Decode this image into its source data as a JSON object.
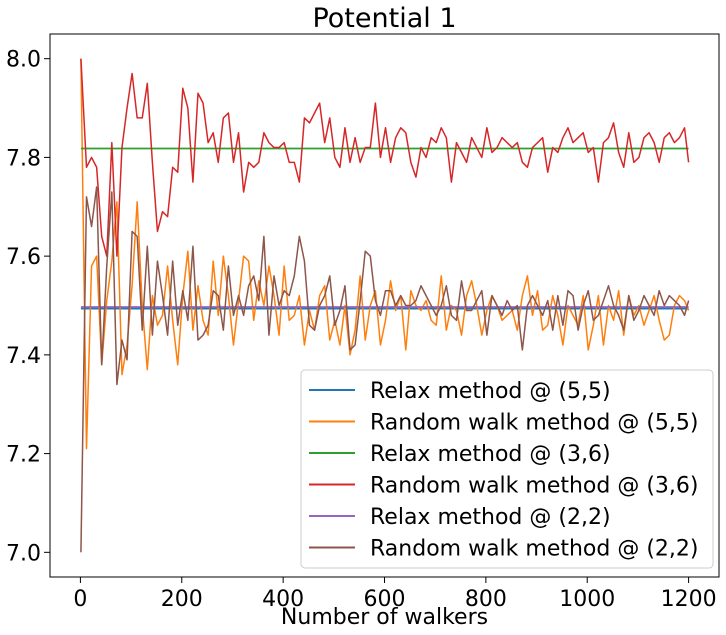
{
  "chart_data": {
    "type": "line",
    "title": "Potential 1",
    "xlabel": "Number of walkers",
    "ylabel": "",
    "xlim": [
      -60,
      1260
    ],
    "ylim": [
      6.95,
      8.05
    ],
    "xticks": [
      0,
      200,
      400,
      600,
      800,
      1000,
      1200
    ],
    "yticks": [
      7.0,
      7.2,
      7.4,
      7.6,
      7.8,
      8.0
    ],
    "xtick_labels": [
      "0",
      "200",
      "400",
      "600",
      "800",
      "1000",
      "1200"
    ],
    "ytick_labels": [
      "7.0",
      "7.2",
      "7.4",
      "7.6",
      "7.8",
      "8.0"
    ],
    "legend_position": "lower-right",
    "grid": false,
    "x": [
      1,
      12,
      22,
      32,
      42,
      52,
      62,
      72,
      82,
      92,
      102,
      112,
      122,
      132,
      142,
      152,
      162,
      172,
      182,
      192,
      202,
      212,
      222,
      232,
      242,
      252,
      262,
      272,
      282,
      292,
      302,
      312,
      322,
      332,
      342,
      352,
      362,
      372,
      382,
      392,
      402,
      412,
      422,
      432,
      442,
      452,
      462,
      472,
      482,
      492,
      502,
      512,
      522,
      532,
      542,
      552,
      562,
      572,
      582,
      592,
      602,
      612,
      622,
      632,
      642,
      652,
      662,
      672,
      682,
      692,
      702,
      712,
      722,
      732,
      742,
      752,
      762,
      772,
      782,
      792,
      802,
      812,
      822,
      832,
      842,
      852,
      862,
      872,
      882,
      892,
      902,
      912,
      922,
      932,
      942,
      952,
      962,
      972,
      982,
      992,
      1002,
      1012,
      1022,
      1032,
      1042,
      1052,
      1062,
      1072,
      1082,
      1092,
      1102,
      1112,
      1122,
      1132,
      1142,
      1152,
      1162,
      1172,
      1182,
      1192,
      1200
    ],
    "series": [
      {
        "name": "Relax method @ (5,5)",
        "color": "#1f77b4",
        "width": 2.2,
        "x": [
          1,
          1200
        ],
        "values": [
          7.494,
          7.494
        ]
      },
      {
        "name": "Random walk method @ (5,5)",
        "color": "#ff7f0e",
        "width": 1.5,
        "values": [
          8.0,
          7.21,
          7.58,
          7.6,
          7.38,
          7.51,
          7.59,
          7.71,
          7.36,
          7.42,
          7.54,
          7.71,
          7.5,
          7.37,
          7.52,
          7.46,
          7.48,
          7.58,
          7.47,
          7.38,
          7.52,
          7.61,
          7.45,
          7.54,
          7.47,
          7.44,
          7.59,
          7.48,
          7.6,
          7.52,
          7.42,
          7.51,
          7.6,
          7.59,
          7.47,
          7.55,
          7.5,
          7.58,
          7.52,
          7.44,
          7.58,
          7.47,
          7.48,
          7.52,
          7.42,
          7.49,
          7.45,
          7.52,
          7.54,
          7.43,
          7.47,
          7.42,
          7.5,
          7.4,
          7.45,
          7.56,
          7.43,
          7.5,
          7.53,
          7.42,
          7.47,
          7.55,
          7.49,
          7.52,
          7.41,
          7.53,
          7.5,
          7.49,
          7.51,
          7.47,
          7.46,
          7.56,
          7.45,
          7.5,
          7.49,
          7.44,
          7.52,
          7.55,
          7.5,
          7.44,
          7.49,
          7.52,
          7.5,
          7.47,
          7.48,
          7.49,
          7.45,
          7.52,
          7.56,
          7.48,
          7.53,
          7.45,
          7.46,
          7.52,
          7.48,
          7.42,
          7.5,
          7.48,
          7.46,
          7.52,
          7.41,
          7.46,
          7.52,
          7.42,
          7.5,
          7.47,
          7.53,
          7.44,
          7.52,
          7.48,
          7.5,
          7.46,
          7.49,
          7.52,
          7.47,
          7.43,
          7.44,
          7.5,
          7.52,
          7.51,
          7.49
        ]
      },
      {
        "name": "Relax method @ (3,6)",
        "color": "#2ca02c",
        "width": 1.8,
        "x": [
          1,
          1200
        ],
        "values": [
          7.818,
          7.818
        ]
      },
      {
        "name": "Random walk method @ (3,6)",
        "color": "#d62728",
        "width": 1.5,
        "values": [
          8.0,
          7.78,
          7.8,
          7.78,
          7.64,
          7.6,
          7.83,
          7.6,
          7.82,
          7.9,
          7.97,
          7.88,
          7.88,
          7.95,
          7.79,
          7.65,
          7.69,
          7.68,
          7.78,
          7.77,
          7.94,
          7.9,
          7.75,
          7.93,
          7.91,
          7.83,
          7.85,
          7.79,
          7.88,
          7.89,
          7.79,
          7.85,
          7.73,
          7.79,
          7.78,
          7.79,
          7.85,
          7.83,
          7.82,
          7.82,
          7.83,
          7.79,
          7.79,
          7.75,
          7.88,
          7.87,
          7.89,
          7.91,
          7.83,
          7.88,
          7.8,
          7.78,
          7.86,
          7.79,
          7.84,
          7.79,
          7.82,
          7.82,
          7.91,
          7.8,
          7.86,
          7.79,
          7.84,
          7.86,
          7.85,
          7.79,
          7.76,
          7.82,
          7.8,
          7.84,
          7.83,
          7.86,
          7.84,
          7.75,
          7.83,
          7.81,
          7.79,
          7.84,
          7.82,
          7.8,
          7.86,
          7.81,
          7.82,
          7.84,
          7.83,
          7.82,
          7.83,
          7.79,
          7.78,
          7.82,
          7.83,
          7.84,
          7.77,
          7.82,
          7.81,
          7.84,
          7.86,
          7.83,
          7.84,
          7.85,
          7.81,
          7.82,
          7.75,
          7.83,
          7.84,
          7.87,
          7.81,
          7.78,
          7.85,
          7.79,
          7.8,
          7.84,
          7.85,
          7.83,
          7.79,
          7.84,
          7.85,
          7.83,
          7.84,
          7.86,
          7.79
        ]
      },
      {
        "name": "Relax method @ (2,2)",
        "color": "#9467bd",
        "width": 1.8,
        "x": [
          1,
          1200
        ],
        "values": [
          7.497,
          7.497
        ]
      },
      {
        "name": "Random walk method @ (2,2)",
        "color": "#8c564b",
        "width": 1.5,
        "values": [
          7.0,
          7.72,
          7.66,
          7.74,
          7.38,
          7.58,
          7.73,
          7.34,
          7.43,
          7.39,
          7.65,
          7.64,
          7.45,
          7.62,
          7.44,
          7.59,
          7.52,
          7.44,
          7.59,
          7.46,
          7.53,
          7.47,
          7.62,
          7.43,
          7.44,
          7.46,
          7.53,
          7.52,
          7.45,
          7.58,
          7.48,
          7.52,
          7.48,
          7.54,
          7.56,
          7.51,
          7.64,
          7.44,
          7.56,
          7.5,
          7.53,
          7.52,
          7.56,
          7.64,
          7.59,
          7.46,
          7.45,
          7.5,
          7.52,
          7.56,
          7.46,
          7.49,
          7.54,
          7.41,
          7.42,
          7.51,
          7.61,
          7.6,
          7.51,
          7.48,
          7.53,
          7.53,
          7.5,
          7.52,
          7.5,
          7.5,
          7.51,
          7.54,
          7.52,
          7.5,
          7.48,
          7.5,
          7.54,
          7.48,
          7.47,
          7.55,
          7.49,
          7.49,
          7.51,
          7.53,
          7.44,
          7.52,
          7.5,
          7.48,
          7.51,
          7.49,
          7.5,
          7.41,
          7.5,
          7.52,
          7.5,
          7.48,
          7.51,
          7.45,
          7.52,
          7.46,
          7.53,
          7.52,
          7.45,
          7.5,
          7.53,
          7.47,
          7.48,
          7.51,
          7.54,
          7.5,
          7.48,
          7.45,
          7.52,
          7.47,
          7.49,
          7.52,
          7.5,
          7.48,
          7.53,
          7.5,
          7.52,
          7.51,
          7.5,
          7.48,
          7.51
        ]
      }
    ]
  }
}
